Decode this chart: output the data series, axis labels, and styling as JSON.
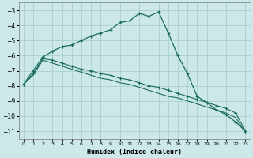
{
  "xlabel": "Humidex (Indice chaleur)",
  "xlim": [
    -0.5,
    23.5
  ],
  "ylim": [
    -11.5,
    -2.5
  ],
  "yticks": [
    -11,
    -10,
    -9,
    -8,
    -7,
    -6,
    -5,
    -4,
    -3
  ],
  "xticks": [
    0,
    1,
    2,
    3,
    4,
    5,
    6,
    7,
    8,
    9,
    10,
    11,
    12,
    13,
    14,
    15,
    16,
    17,
    18,
    19,
    20,
    21,
    22,
    23
  ],
  "background_color": "#cce8e8",
  "grid_color": "#aacfcf",
  "line_color": "#1a6b5e",
  "line1_x": [
    0,
    1,
    2,
    3,
    4,
    5,
    6,
    7,
    8,
    9,
    10,
    11,
    12,
    13,
    14,
    15,
    16,
    17,
    18,
    19,
    20,
    21,
    22,
    23
  ],
  "line1_y": [
    -7.9,
    -7.0,
    -6.1,
    -5.7,
    -5.4,
    -5.3,
    -5.0,
    -4.7,
    -4.5,
    -4.3,
    -3.8,
    -3.7,
    -3.2,
    -3.4,
    -3.1,
    -4.5,
    -6.0,
    -7.2,
    -8.7,
    -9.1,
    -9.6,
    -9.9,
    -10.4,
    -11.0
  ],
  "line2_x": [
    0,
    1,
    2,
    3,
    4,
    5,
    6,
    7,
    8,
    9,
    10,
    11,
    12,
    13,
    14,
    15,
    16,
    17,
    18,
    19,
    20,
    21,
    22,
    23
  ],
  "line2_y": [
    -7.9,
    -7.2,
    -6.2,
    -6.3,
    -6.5,
    -6.7,
    -6.9,
    -7.0,
    -7.2,
    -7.3,
    -7.5,
    -7.6,
    -7.8,
    -8.0,
    -8.1,
    -8.3,
    -8.5,
    -8.7,
    -8.9,
    -9.1,
    -9.3,
    -9.5,
    -9.8,
    -11.0
  ],
  "line3_x": [
    0,
    1,
    2,
    3,
    4,
    5,
    6,
    7,
    8,
    9,
    10,
    11,
    12,
    13,
    14,
    15,
    16,
    17,
    18,
    19,
    20,
    21,
    22,
    23
  ],
  "line3_y": [
    -7.9,
    -7.3,
    -6.3,
    -6.5,
    -6.7,
    -6.9,
    -7.1,
    -7.3,
    -7.5,
    -7.6,
    -7.8,
    -7.9,
    -8.1,
    -8.3,
    -8.5,
    -8.7,
    -8.8,
    -9.0,
    -9.2,
    -9.4,
    -9.6,
    -9.8,
    -10.1,
    -11.1
  ]
}
